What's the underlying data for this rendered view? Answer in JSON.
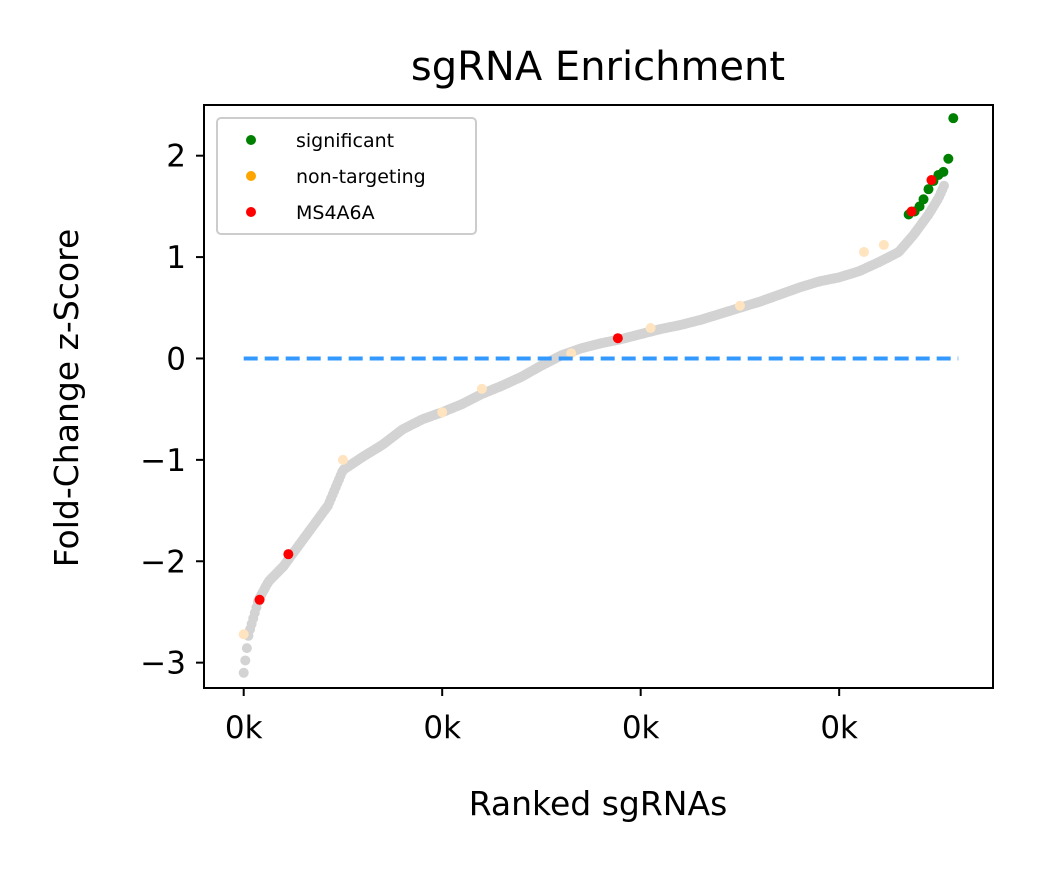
{
  "chart_data": {
    "type": "scatter",
    "title": "sgRNA Enrichment",
    "xlabel": "Ranked sgRNAs",
    "ylabel": "Fold-Change z-Score",
    "xlim": [
      -40,
      755
    ],
    "ylim": [
      -3.25,
      2.5
    ],
    "x_ticks": [
      {
        "value": 0,
        "label": "0k"
      },
      {
        "value": 200,
        "label": "0k"
      },
      {
        "value": 400,
        "label": "0k"
      },
      {
        "value": 600,
        "label": "0k"
      }
    ],
    "y_ticks": [
      {
        "value": -3,
        "label": "−3"
      },
      {
        "value": -2,
        "label": "−2"
      },
      {
        "value": -1,
        "label": "−1"
      },
      {
        "value": 0,
        "label": "0"
      },
      {
        "value": 1,
        "label": "1"
      },
      {
        "value": 2,
        "label": "2"
      }
    ],
    "reference_line": {
      "y": 0,
      "x_range": [
        0,
        720
      ],
      "color": "#3399ff",
      "style": "dashed"
    },
    "grid": false,
    "legend_position": "top-left",
    "colors": {
      "background_points": "#d3d3d3",
      "non_targeting_faded": "#ffe4bf",
      "significant": "#008000",
      "non-targeting": "#ffa500",
      "MS4A6A": "#ff0000"
    },
    "curve": {
      "x": [
        0,
        5,
        10,
        15,
        25,
        40,
        55,
        70,
        85,
        100,
        120,
        140,
        160,
        180,
        200,
        220,
        240,
        260,
        280,
        300,
        320,
        340,
        360,
        380,
        400,
        420,
        440,
        460,
        480,
        500,
        520,
        540,
        560,
        580,
        600,
        620,
        640,
        660,
        675,
        690,
        700,
        710,
        715
      ],
      "y": [
        -3.1,
        -2.72,
        -2.55,
        -2.38,
        -2.2,
        -2.05,
        -1.85,
        -1.65,
        -1.45,
        -1.1,
        -0.97,
        -0.85,
        -0.7,
        -0.6,
        -0.53,
        -0.45,
        -0.35,
        -0.27,
        -0.18,
        -0.07,
        0.03,
        0.1,
        0.15,
        0.19,
        0.24,
        0.29,
        0.33,
        0.38,
        0.44,
        0.5,
        0.56,
        0.63,
        0.7,
        0.76,
        0.8,
        0.86,
        0.95,
        1.05,
        1.22,
        1.42,
        1.58,
        1.8,
        1.95
      ]
    },
    "series": [
      {
        "name": "significant",
        "x": [
          670,
          676,
          681,
          685,
          690,
          695,
          700,
          705,
          710,
          715
        ],
        "y": [
          1.42,
          1.45,
          1.5,
          1.57,
          1.67,
          1.75,
          1.81,
          1.84,
          1.97,
          2.37
        ]
      },
      {
        "name": "non-targeting",
        "x": [
          0,
          100,
          200,
          240,
          330,
          410,
          500,
          625,
          645
        ],
        "y": [
          -2.72,
          -1.0,
          -0.53,
          -0.3,
          0.05,
          0.3,
          0.52,
          1.05,
          1.12
        ]
      },
      {
        "name": "MS4A6A",
        "x": [
          16,
          45,
          377,
          673,
          693
        ],
        "y": [
          -2.38,
          -1.93,
          0.2,
          1.45,
          1.76
        ]
      }
    ]
  }
}
